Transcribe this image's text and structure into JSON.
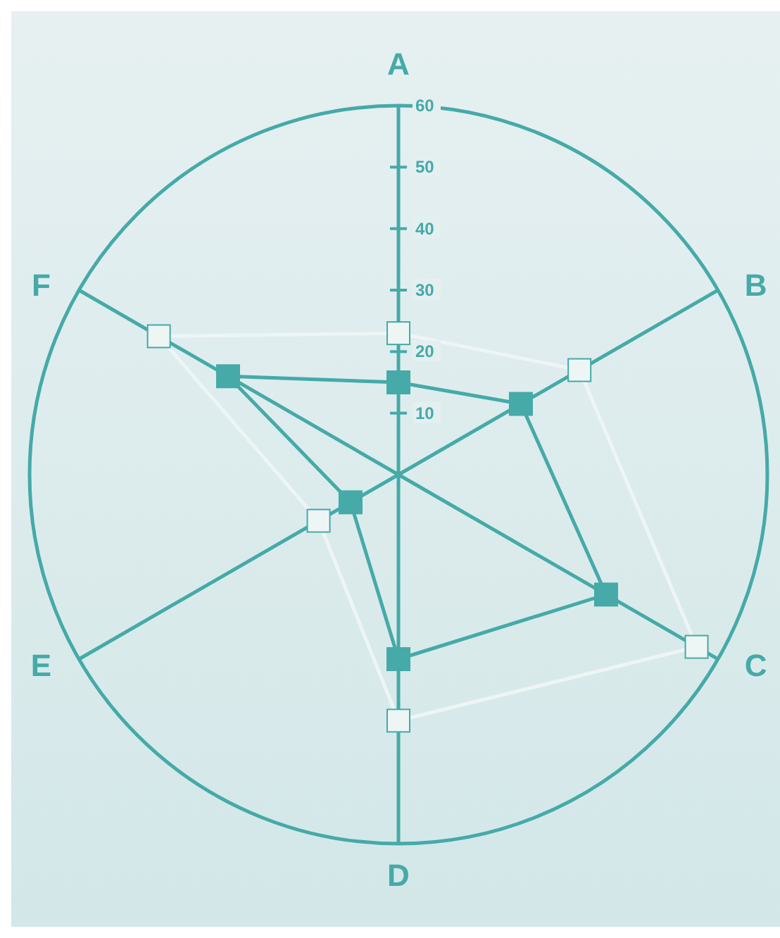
{
  "chart_data": {
    "type": "radar",
    "categories": [
      "A",
      "B",
      "C",
      "D",
      "E",
      "F"
    ],
    "series": [
      {
        "color": "#45aaa8",
        "values": [
          15,
          23,
          39,
          30,
          9,
          32
        ]
      },
      {
        "color": "#eef5f5",
        "values": [
          23,
          34,
          56,
          40,
          15,
          45
        ]
      }
    ],
    "ylim": [
      0,
      60
    ],
    "yticks": [
      10,
      20,
      30,
      40,
      50,
      60
    ],
    "marker": "square",
    "grid": true
  }
}
